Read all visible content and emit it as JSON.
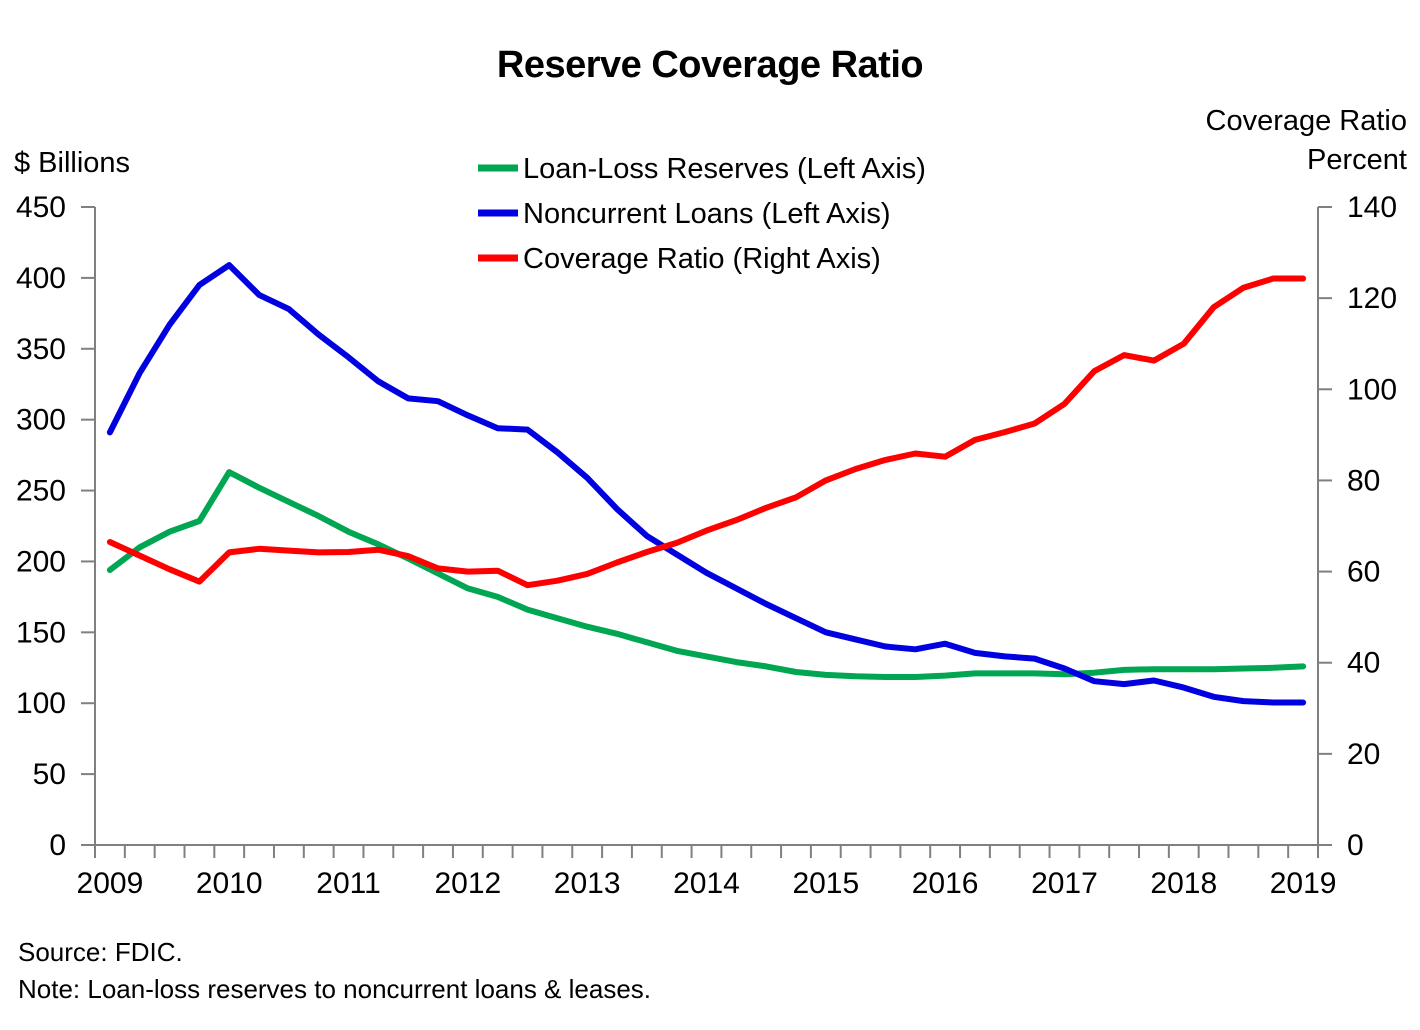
{
  "title": "Reserve Coverage Ratio",
  "left_axis": {
    "unit_label": "$ Billions",
    "ticks": [
      450,
      400,
      350,
      300,
      250,
      200,
      150,
      100,
      50,
      0
    ]
  },
  "right_axis": {
    "title": "Coverage Ratio",
    "unit_label": "Percent",
    "ticks": [
      140,
      120,
      100,
      80,
      60,
      40,
      20,
      0
    ]
  },
  "x_axis": {
    "years": [
      "2009",
      "2010",
      "2011",
      "2012",
      "2013",
      "2014",
      "2015",
      "2016",
      "2017",
      "2018",
      "2019"
    ]
  },
  "legend": {
    "items": [
      {
        "key": "loan-loss-reserves",
        "label": "Loan-Loss Reserves (Left Axis)",
        "color": "#00A651"
      },
      {
        "key": "noncurrent-loans",
        "label": "Noncurrent Loans (Left Axis)",
        "color": "#0000E0"
      },
      {
        "key": "coverage-ratio",
        "label": "Coverage Ratio (Right Axis)",
        "color": "#FF0000"
      }
    ]
  },
  "footer": {
    "source": "Source: FDIC.",
    "note": "Note: Loan-loss reserves to noncurrent loans & leases."
  },
  "colors": {
    "axis": "#808080",
    "text": "#000000",
    "background": "#ffffff"
  },
  "chart_data": {
    "type": "line",
    "grid": false,
    "legend_position": "top-center",
    "left_ylim": [
      0,
      450
    ],
    "right_ylim": [
      0,
      140
    ],
    "x_quarters": [
      "2009 Q1",
      "2009 Q2",
      "2009 Q3",
      "2009 Q4",
      "2010 Q1",
      "2010 Q2",
      "2010 Q3",
      "2010 Q4",
      "2011 Q1",
      "2011 Q2",
      "2011 Q3",
      "2011 Q4",
      "2012 Q1",
      "2012 Q2",
      "2012 Q3",
      "2012 Q4",
      "2013 Q1",
      "2013 Q2",
      "2013 Q3",
      "2013 Q4",
      "2014 Q1",
      "2014 Q2",
      "2014 Q3",
      "2014 Q4",
      "2015 Q1",
      "2015 Q2",
      "2015 Q3",
      "2015 Q4",
      "2016 Q1",
      "2016 Q2",
      "2016 Q3",
      "2016 Q4",
      "2017 Q1",
      "2017 Q2",
      "2017 Q3",
      "2017 Q4",
      "2018 Q1",
      "2018 Q2",
      "2018 Q3",
      "2018 Q4",
      "2019 Q1"
    ],
    "series": [
      {
        "name": "Loan-Loss Reserves (Left Axis)",
        "key": "loan-loss-reserves",
        "axis": "left",
        "unit": "$ Billions",
        "color": "#00A651",
        "values": [
          194,
          210,
          221,
          228.5,
          263,
          252,
          242,
          232,
          221,
          212,
          202,
          191.5,
          181,
          175,
          166,
          160,
          154,
          149,
          143,
          137,
          133,
          129,
          126,
          122,
          120,
          119,
          118.5,
          118.5,
          119.5,
          121,
          121,
          121,
          120.5,
          121.5,
          123.5,
          124,
          124,
          124,
          124.5,
          125,
          126
        ]
      },
      {
        "name": "Noncurrent Loans (Left Axis)",
        "key": "noncurrent-loans",
        "axis": "left",
        "unit": "$ Billions",
        "color": "#0000E0",
        "values": [
          291,
          333,
          367,
          395,
          409,
          388,
          378,
          360,
          344,
          327,
          315,
          313,
          303,
          294,
          293,
          277,
          259,
          237,
          218,
          205,
          192,
          181,
          170,
          160,
          150,
          145,
          140,
          138,
          142,
          135.5,
          133,
          131.5,
          124.5,
          115.5,
          113.5,
          116,
          111,
          104.5,
          101.5,
          100.5,
          100.5
        ]
      },
      {
        "name": "Coverage Ratio (Right Axis)",
        "key": "coverage-ratio",
        "axis": "right",
        "unit": "Percent",
        "color": "#FF0000",
        "values": [
          66.5,
          63.5,
          60.5,
          57.8,
          64.2,
          65.0,
          64.6,
          64.2,
          64.3,
          64.8,
          63.4,
          60.7,
          60.0,
          60.2,
          57.0,
          58.0,
          59.5,
          62.0,
          64.3,
          66.3,
          69.0,
          71.3,
          74.0,
          76.3,
          80.0,
          82.5,
          84.5,
          85.9,
          85.2,
          88.9,
          90.6,
          92.5,
          96.8,
          104.0,
          107.5,
          106.3,
          110.0,
          118.0,
          122.3,
          124.3,
          124.3
        ]
      }
    ]
  }
}
